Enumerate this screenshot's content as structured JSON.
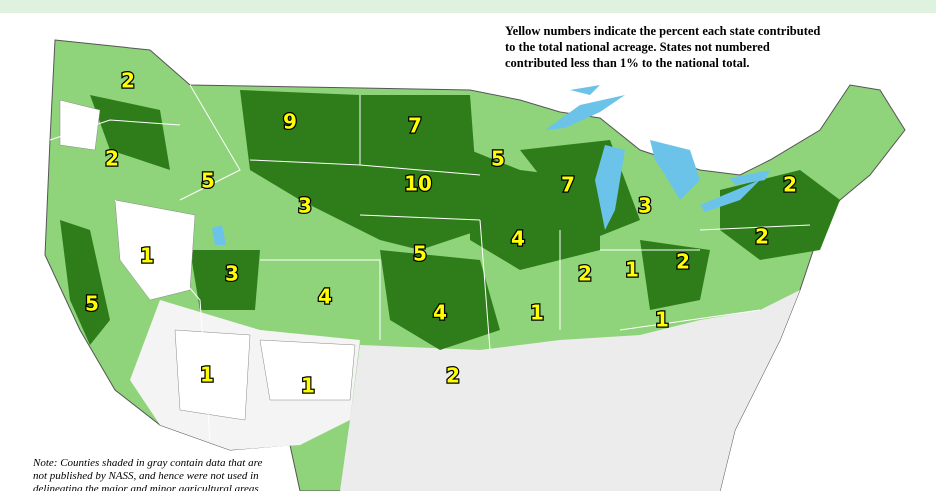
{
  "header": {
    "lines": [
      "Yellow numbers indicate the percent each state contributed",
      "to the total national acreage.  States not numbered",
      "contributed less than 1% to the national total."
    ]
  },
  "note": {
    "lines": [
      "Note:  Counties shaded in gray contain data that are",
      "not published by NASS, and hence were not used in",
      "delineating the major and minor agricultural areas"
    ]
  },
  "state_labels": [
    2,
    2,
    9,
    7,
    5,
    10,
    5,
    3,
    7,
    3,
    2,
    2,
    4,
    5,
    1,
    3,
    4,
    2,
    1,
    2,
    5,
    4,
    1,
    1,
    2,
    1,
    1
  ]
}
